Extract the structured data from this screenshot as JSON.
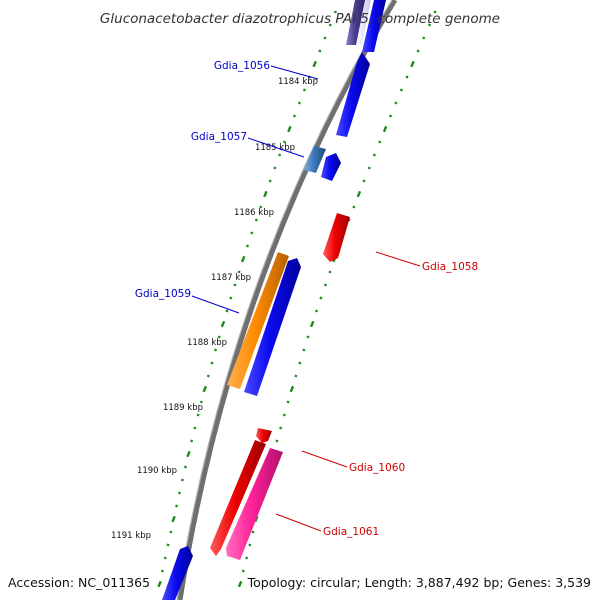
{
  "title": "Gluconacetobacter diazotrophicus PAI 5, complete genome",
  "footer": {
    "accession": "Accession: NC_011365",
    "summary": "Topology: circular; Length: 3,887,492 bp; Genes: 3,539"
  },
  "ticks": [
    "1184 kbp",
    "1185 kbp",
    "1186 kbp",
    "1187 kbp",
    "1188 kbp",
    "1189 kbp",
    "1190 kbp",
    "1191 kbp"
  ],
  "gene_labels": [
    "Gdia_1056",
    "Gdia_1057",
    "Gdia_1058",
    "Gdia_1059",
    "Gdia_1060",
    "Gdia_1061"
  ],
  "colors": {
    "backbone": "#7a7a7a",
    "tick_dots": "#1a8a1a",
    "label_forward": "#0000cc",
    "label_reverse": "#cc0000",
    "gene_blue": "#0a0af0",
    "gene_red": "#ee0000",
    "gene_orange": "#ff8c00",
    "gene_pink": "#ff2299",
    "gene_steel": "#3a78b8",
    "gene_purple": "#4a3d8f"
  }
}
